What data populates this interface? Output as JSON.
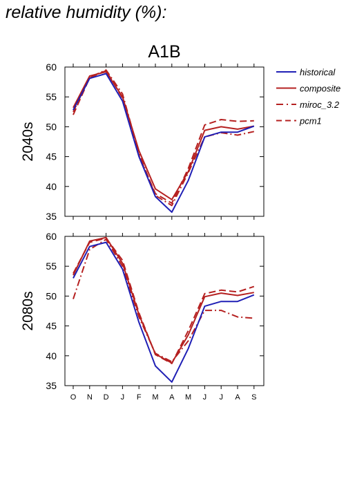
{
  "page_title": "relative humidity (%):",
  "colors": {
    "historical": "#1f1fb5",
    "projection": "#b52020",
    "axis": "#000000"
  },
  "chart_data": [
    {
      "type": "line",
      "title": "A1B",
      "panel_label": "2040s",
      "categories": [
        "O",
        "N",
        "D",
        "J",
        "F",
        "M",
        "A",
        "M",
        "J",
        "J",
        "A",
        "S"
      ],
      "ylim": [
        35,
        60
      ],
      "yticks": [
        35,
        40,
        45,
        50,
        55,
        60
      ],
      "grid": false,
      "legend_position": "right",
      "series": [
        {
          "name": "historical",
          "dash": "solid",
          "color": "historical",
          "values": [
            52.8,
            58.1,
            58.9,
            54.3,
            45.0,
            38.3,
            35.7,
            41.0,
            48.3,
            49.1,
            49.1,
            50.1
          ]
        },
        {
          "name": "composite",
          "dash": "solid",
          "color": "projection",
          "values": [
            53.2,
            58.5,
            59.2,
            55.0,
            46.0,
            39.6,
            37.8,
            42.5,
            49.4,
            50.0,
            49.6,
            50.1
          ]
        },
        {
          "name": "miroc_3.2",
          "dash": "dashdot",
          "color": "projection",
          "values": [
            52.5,
            58.3,
            59.5,
            55.5,
            45.6,
            38.5,
            36.8,
            42.3,
            48.3,
            49.0,
            48.6,
            49.2
          ]
        },
        {
          "name": "pcm1",
          "dash": "dash",
          "color": "projection",
          "values": [
            52.0,
            58.2,
            59.4,
            54.8,
            45.2,
            38.8,
            37.2,
            43.0,
            50.3,
            51.2,
            50.9,
            51.0
          ]
        }
      ]
    },
    {
      "type": "line",
      "title": "",
      "panel_label": "2080s",
      "categories": [
        "O",
        "N",
        "D",
        "J",
        "F",
        "M",
        "A",
        "M",
        "J",
        "J",
        "A",
        "S"
      ],
      "ylim": [
        35,
        60
      ],
      "yticks": [
        35,
        40,
        45,
        50,
        55,
        60
      ],
      "grid": false,
      "series": [
        {
          "name": "historical",
          "dash": "solid",
          "color": "historical",
          "values": [
            53.0,
            58.3,
            59.0,
            54.5,
            45.6,
            38.3,
            35.6,
            41.2,
            48.3,
            49.1,
            49.1,
            50.2
          ]
        },
        {
          "name": "composite",
          "dash": "solid",
          "color": "projection",
          "values": [
            53.5,
            59.2,
            59.8,
            55.5,
            46.9,
            40.3,
            38.8,
            43.5,
            49.9,
            50.5,
            50.1,
            50.6
          ]
        },
        {
          "name": "miroc_3.2",
          "dash": "dashdot",
          "color": "projection",
          "values": [
            49.5,
            57.8,
            59.5,
            55.0,
            46.5,
            40.4,
            39.0,
            42.5,
            47.6,
            47.6,
            46.5,
            46.3
          ]
        },
        {
          "name": "pcm1",
          "dash": "dash",
          "color": "projection",
          "values": [
            53.8,
            59.0,
            59.7,
            56.0,
            47.2,
            40.2,
            38.7,
            44.2,
            50.4,
            51.0,
            50.7,
            51.6
          ]
        }
      ]
    }
  ]
}
